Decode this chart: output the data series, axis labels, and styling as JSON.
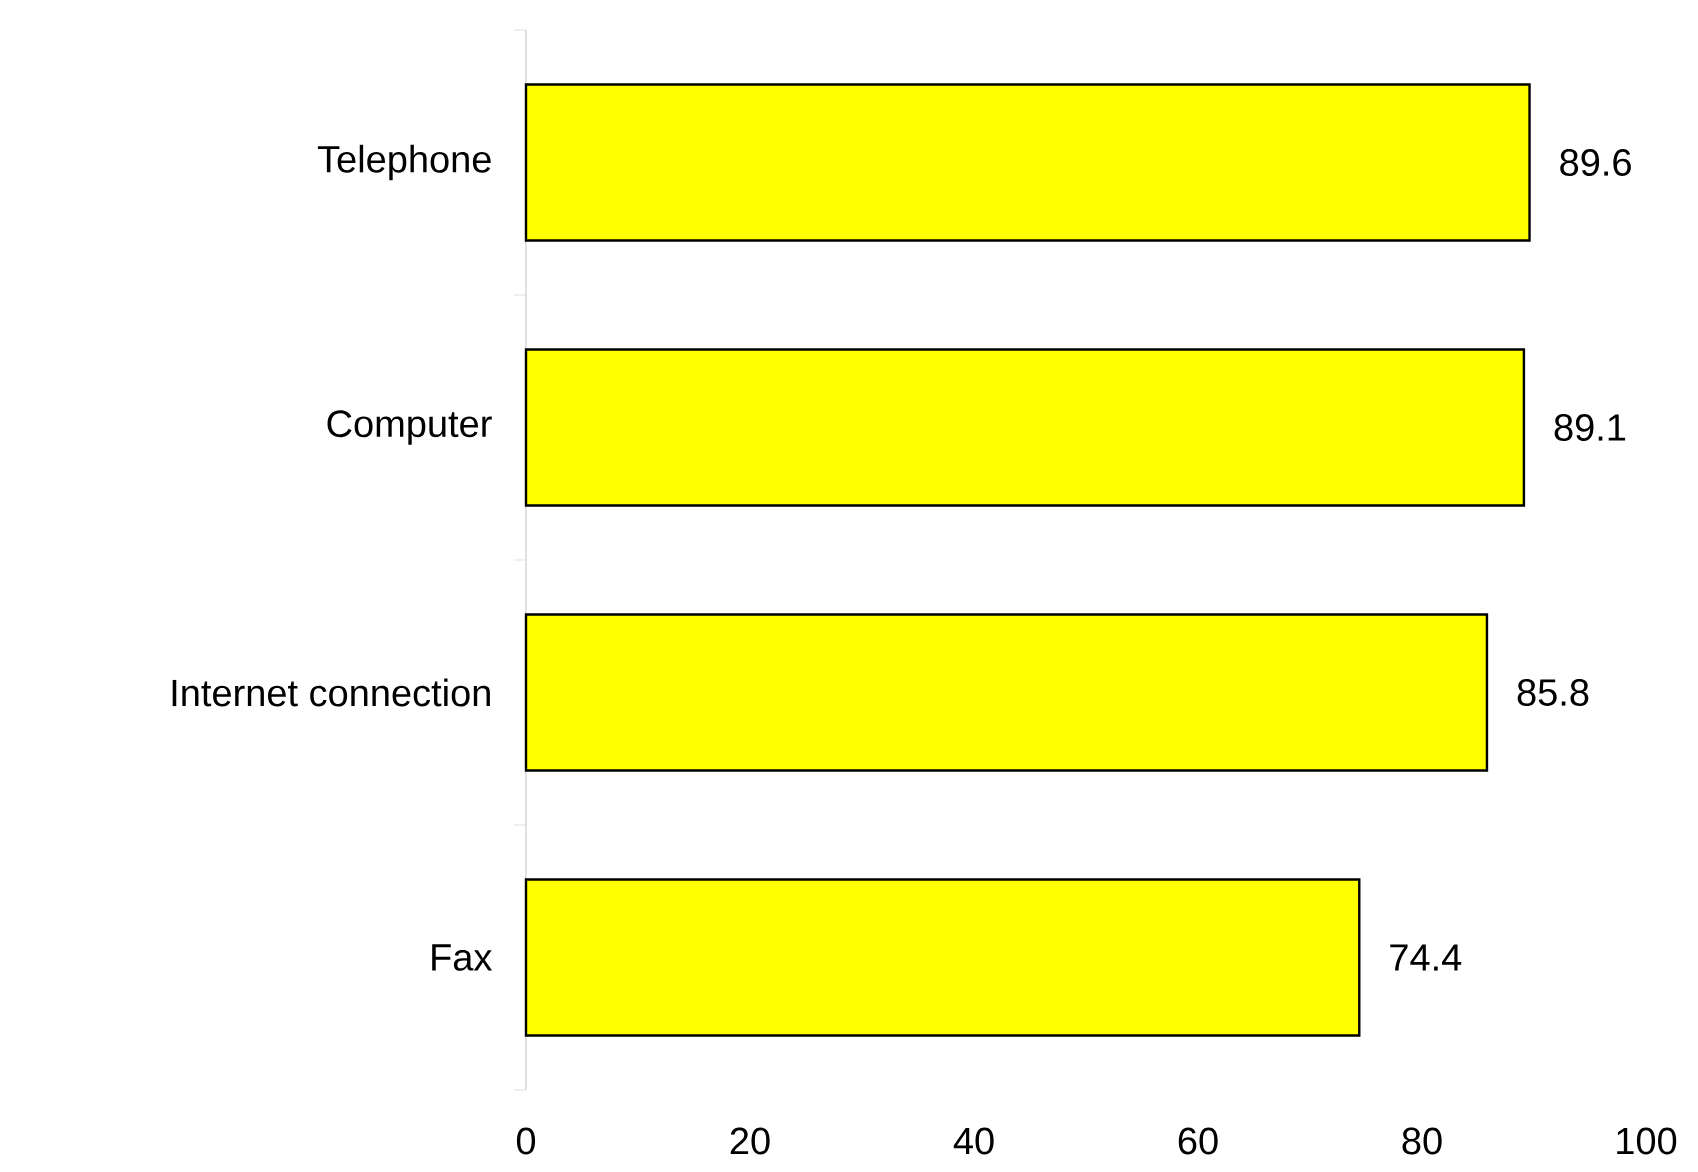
{
  "chart_data": {
    "type": "bar",
    "orientation": "horizontal",
    "categories": [
      "Telephone",
      "Computer",
      "Internet connection",
      "Fax"
    ],
    "values": [
      89.6,
      89.1,
      85.8,
      74.4
    ],
    "color": "#ffff00",
    "xlim": [
      0,
      100
    ],
    "xticks": [
      0,
      20,
      40,
      60,
      80,
      100
    ],
    "data_labels": true
  }
}
